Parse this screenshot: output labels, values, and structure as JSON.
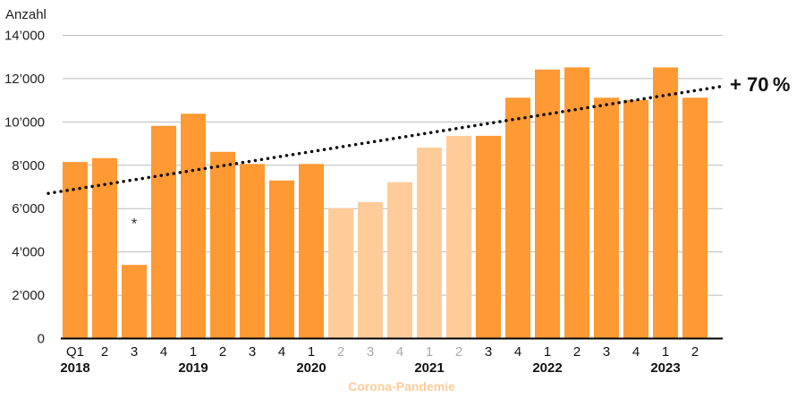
{
  "chart_data": {
    "type": "bar",
    "ylabel": "Anzahl",
    "ylim": [
      0,
      14000
    ],
    "yticks": [
      0,
      2000,
      4000,
      6000,
      8000,
      10000,
      12000,
      14000
    ],
    "ytick_labels": [
      "0",
      "2’000",
      "4’000",
      "6’000",
      "8’000",
      "10’000",
      "12’000",
      "14’000"
    ],
    "grid": true,
    "categories": [
      "Q1",
      "2",
      "3",
      "4",
      "1",
      "2",
      "3",
      "4",
      "1",
      "2",
      "3",
      "4",
      "1",
      "2",
      "3",
      "4",
      "1",
      "2",
      "3",
      "4",
      "1",
      "2"
    ],
    "values": [
      8150,
      8330,
      3400,
      9820,
      10380,
      8620,
      8060,
      7300,
      8060,
      6020,
      6300,
      7220,
      8820,
      9360,
      9360,
      11120,
      12420,
      12520,
      11120,
      11020,
      12520,
      11120
    ],
    "pandemic": [
      false,
      false,
      false,
      false,
      false,
      false,
      false,
      false,
      false,
      true,
      true,
      true,
      true,
      true,
      false,
      false,
      false,
      false,
      false,
      false,
      false,
      false
    ],
    "years": [
      {
        "label": "2018",
        "index": 0
      },
      {
        "label": "2019",
        "index": 4
      },
      {
        "label": "2020",
        "index": 8
      },
      {
        "label": "2021",
        "index": 12
      },
      {
        "label": "2022",
        "index": 16
      },
      {
        "label": "2023",
        "index": 20
      }
    ],
    "trendline": {
      "start": 6700,
      "end": 11650,
      "label": "+ 70 %"
    },
    "annotation": {
      "text": "*",
      "index": 2,
      "value": 5500
    },
    "pandemic_label": "Corona-Pandemie",
    "colors": {
      "bar": "#FF9933",
      "bar_pandemic": "#FFCC99",
      "grid": "#BBBBBB",
      "axis": "#000000",
      "caption": "#FFCC99",
      "pandemic_tick": "#AAAAAA"
    }
  }
}
